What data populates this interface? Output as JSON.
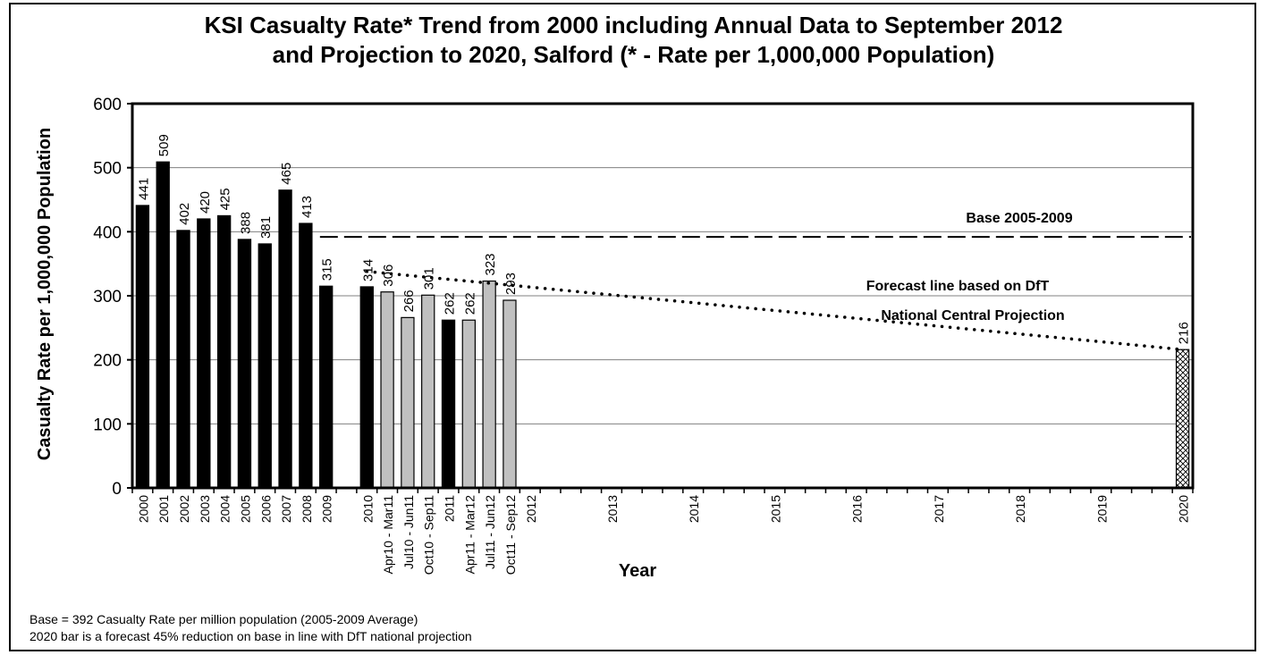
{
  "chart_data": {
    "type": "bar",
    "title": [
      "KSI Casualty Rate* Trend from 2000 including Annual Data to September 2012",
      "and Projection to 2020, Salford (* - Rate per 1,000,000 Population)"
    ],
    "xlabel": "Year",
    "ylabel": "Casualty Rate per 1,000,000 Population",
    "ylim": [
      0,
      600
    ],
    "yticks": [
      0,
      100,
      200,
      300,
      400,
      500,
      600
    ],
    "grid": true,
    "categories": [
      "2000",
      "2001",
      "2002",
      "2003",
      "2004",
      "2005",
      "2006",
      "2007",
      "2008",
      "2009",
      "",
      "2010",
      "Apr10 - Mar11",
      "Jul10 - Jun11",
      "Oct10 - Sep11",
      "2011",
      "Apr11 - Mar12",
      "Jul11 - Jun12",
      "Oct11 - Sep12",
      "2012",
      "",
      "",
      "",
      "2013",
      "",
      "",
      "",
      "2014",
      "",
      "",
      "",
      "2015",
      "",
      "",
      "",
      "2016",
      "",
      "",
      "",
      "2017",
      "",
      "",
      "",
      "2018",
      "",
      "",
      "",
      "2019",
      "",
      "",
      "",
      "2020"
    ],
    "bars": [
      {
        "category": "2000",
        "value": 441,
        "label": "441",
        "kind": "annual"
      },
      {
        "category": "2001",
        "value": 509,
        "label": "509",
        "kind": "annual"
      },
      {
        "category": "2002",
        "value": 402,
        "label": "402",
        "kind": "annual"
      },
      {
        "category": "2003",
        "value": 420,
        "label": "420",
        "kind": "annual"
      },
      {
        "category": "2004",
        "value": 425,
        "label": "425",
        "kind": "annual"
      },
      {
        "category": "2005",
        "value": 388,
        "label": "388",
        "kind": "annual"
      },
      {
        "category": "2006",
        "value": 381,
        "label": "381",
        "kind": "annual"
      },
      {
        "category": "2007",
        "value": 465,
        "label": "465",
        "kind": "annual"
      },
      {
        "category": "2008",
        "value": 413,
        "label": "413",
        "kind": "annual"
      },
      {
        "category": "2009",
        "value": 315,
        "label": "315",
        "kind": "annual"
      },
      {
        "category": "2010",
        "value": 314,
        "label": "314",
        "kind": "annual"
      },
      {
        "category": "Apr10 - Mar11",
        "value": 306,
        "label": "306",
        "kind": "rolling"
      },
      {
        "category": "Jul10 - Jun11",
        "value": 266,
        "label": "266",
        "kind": "rolling"
      },
      {
        "category": "Oct10 - Sep11",
        "value": 301,
        "label": "301",
        "kind": "rolling"
      },
      {
        "category": "2011",
        "value": 262,
        "label": "262",
        "kind": "annual"
      },
      {
        "category": "Apr11 - Mar12",
        "value": 262,
        "label": "262",
        "kind": "rolling"
      },
      {
        "category": "Jul11 - Jun12",
        "value": 323,
        "label": "323",
        "kind": "rolling"
      },
      {
        "category": "Oct11 - Sep12",
        "value": 293,
        "label": "293",
        "kind": "rolling"
      },
      {
        "category": "2020",
        "value": 216,
        "label": "216",
        "kind": "forecast"
      }
    ],
    "baseline": {
      "value": 392,
      "label": "Base 2005-2009"
    },
    "forecast_line": {
      "label": [
        "Forecast line based on DfT",
        "National Central Projection"
      ],
      "from": {
        "category": "2010",
        "value": 338
      },
      "to": {
        "category": "2020",
        "value": 216
      }
    },
    "colors": {
      "annual": "#000000",
      "rolling": "#c0c0c0",
      "forecast": "#ffffff"
    }
  },
  "notes": [
    "Base = 392 Casualty Rate per million population (2005-2009 Average)",
    "2020 bar is a forecast 45% reduction on base in line with DfT national  projection"
  ]
}
